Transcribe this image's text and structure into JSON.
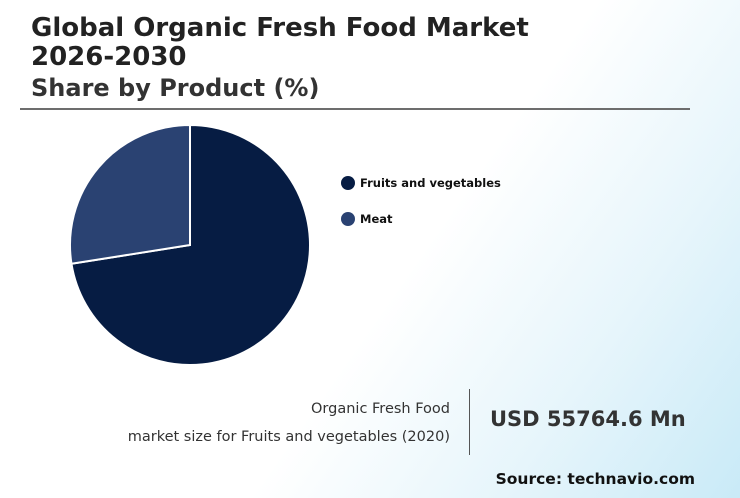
{
  "header": {
    "title": "Global Organic Fresh Food Market\n2026-2030",
    "subtitle": "Share by Product (%)"
  },
  "chart_data": {
    "type": "pie",
    "categories": [
      "Fruits and vegetables",
      "Meat"
    ],
    "values": [
      72.5,
      27.5
    ],
    "colors": [
      "#061c43",
      "#2a4272"
    ],
    "start_angle_deg": 0,
    "direction": "clockwise",
    "legend_position": "right"
  },
  "stat": {
    "line1": "Organic Fresh Food",
    "line2": "market size for Fruits and vegetables (2020)",
    "value": "USD 55764.6 Mn"
  },
  "source": "Source: technavio.com"
}
